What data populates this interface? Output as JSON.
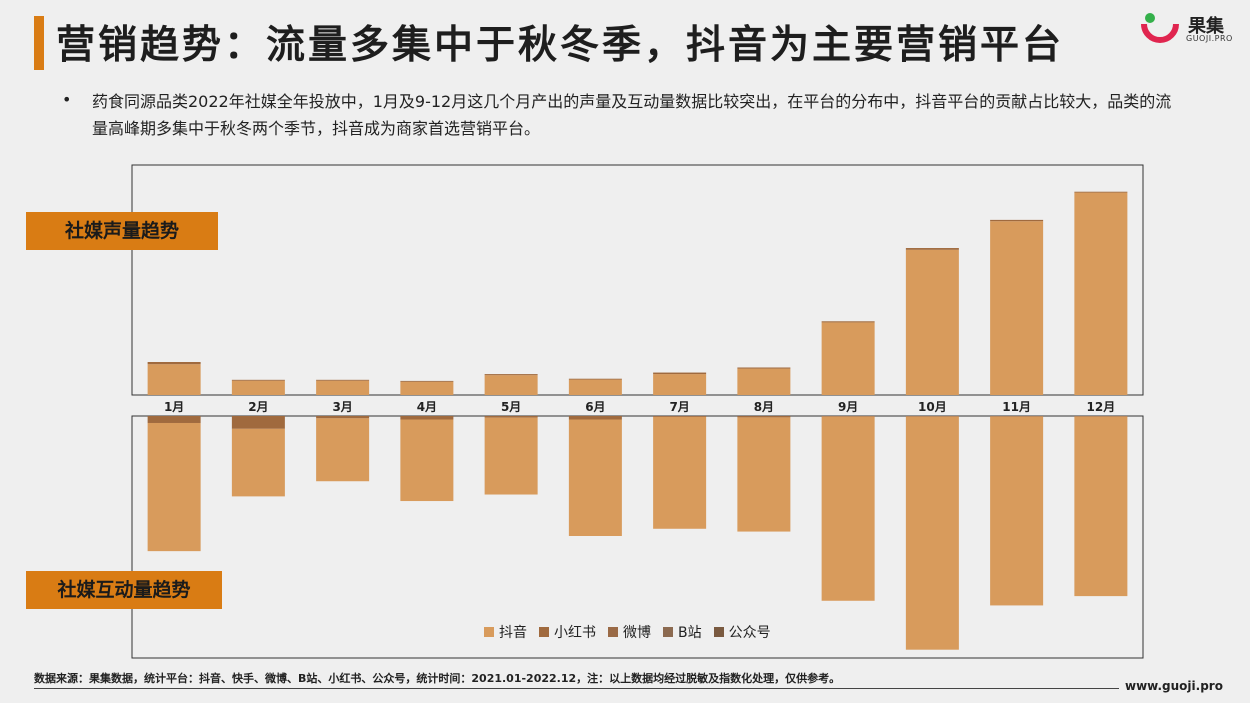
{
  "header": {
    "title": "营销趋势：流量多集中于秋冬季，抖音为主要营销平台",
    "accent_color": "#d97c14"
  },
  "logo": {
    "name": "果集",
    "sub": "GUOJI.PRO",
    "icon": "guoji-logo-icon"
  },
  "summary": {
    "bullet": "•",
    "text": "药食同源品类2022年社媒全年投放中，1月及9-12月这几个月产出的声量及互动量数据比较突出，在平台的分布中，抖音平台的贡献占比较大，品类的流量高峰期多集中于秋冬两个季节，抖音成为商家首选营销平台。"
  },
  "chart_data": [
    {
      "type": "bar",
      "stacked": true,
      "label": "社媒声量趋势",
      "categories": [
        "1月",
        "2月",
        "3月",
        "4月",
        "5月",
        "6月",
        "7月",
        "8月",
        "9月",
        "10月",
        "11月",
        "12月"
      ],
      "series": [
        {
          "name": "抖音",
          "color": "#d89b5c",
          "values": [
            14,
            6.5,
            6.5,
            6,
            9,
            7,
            9.5,
            12,
            33,
            66,
            79,
            92
          ]
        },
        {
          "name": "小红书",
          "color": "#a06a3e",
          "values": [
            1,
            0.4,
            0.4,
            0.4,
            0.5,
            0.4,
            0.7,
            0.5,
            0.5,
            0.8,
            0.6,
            0.4
          ]
        },
        {
          "name": "微博",
          "color": "#9a6a46",
          "values": [
            0,
            0,
            0,
            0,
            0,
            0,
            0,
            0,
            0,
            0,
            0,
            0
          ]
        },
        {
          "name": "B站",
          "color": "#8c6a50",
          "values": [
            0,
            0,
            0,
            0,
            0,
            0,
            0,
            0,
            0,
            0,
            0,
            0
          ]
        },
        {
          "name": "公众号",
          "color": "#7a5a40",
          "values": [
            0,
            0,
            0,
            0,
            0,
            0,
            0,
            0,
            0,
            0,
            0,
            0
          ]
        }
      ],
      "ylim": [
        0,
        100
      ],
      "axis_labels_shown": false
    },
    {
      "type": "bar",
      "stacked": true,
      "direction": "down",
      "label": "社媒互动量趋势",
      "categories": [
        "1月",
        "2月",
        "3月",
        "4月",
        "5月",
        "6月",
        "7月",
        "8月",
        "9月",
        "10月",
        "11月",
        "12月"
      ],
      "series": [
        {
          "name": "抖音",
          "color": "#d89b5c",
          "values": [
            55,
            29,
            27,
            35,
            33,
            50,
            48,
            49,
            79,
            100,
            81,
            77
          ]
        },
        {
          "name": "小红书",
          "color": "#a06a3e",
          "values": [
            3,
            5.5,
            1,
            1.5,
            0.7,
            1.5,
            0.4,
            0.6,
            0.3,
            0.3,
            0.3,
            0.3
          ]
        },
        {
          "name": "微博",
          "color": "#9a6a46",
          "values": [
            0,
            0,
            0,
            0,
            0,
            0,
            0,
            0,
            0,
            0,
            0,
            0
          ]
        },
        {
          "name": "B站",
          "color": "#8c6a50",
          "values": [
            0,
            0,
            0,
            0,
            0,
            0,
            0,
            0,
            0,
            0,
            0,
            0
          ]
        },
        {
          "name": "公众号",
          "color": "#7a5a40",
          "values": [
            0,
            0,
            0,
            0,
            0,
            0,
            0,
            0,
            0,
            0,
            0,
            0
          ]
        }
      ],
      "ylim": [
        0,
        100
      ],
      "axis_labels_shown": false,
      "legend_position": "bottom-center"
    }
  ],
  "legend": [
    {
      "name": "抖音",
      "color": "#d89b5c"
    },
    {
      "name": "小红书",
      "color": "#a06a3e"
    },
    {
      "name": "微博",
      "color": "#9a6a46"
    },
    {
      "name": "B站",
      "color": "#8c6a50"
    },
    {
      "name": "公众号",
      "color": "#7a5a40"
    }
  ],
  "footer": {
    "note": "数据来源：果集数据，统计平台：抖音、快手、微博、B站、小红书、公众号，统计时间：2021.01-2022.12，注：以上数据均经过脱敏及指数化处理，仅供参考。",
    "url": "www.guoji.pro"
  }
}
